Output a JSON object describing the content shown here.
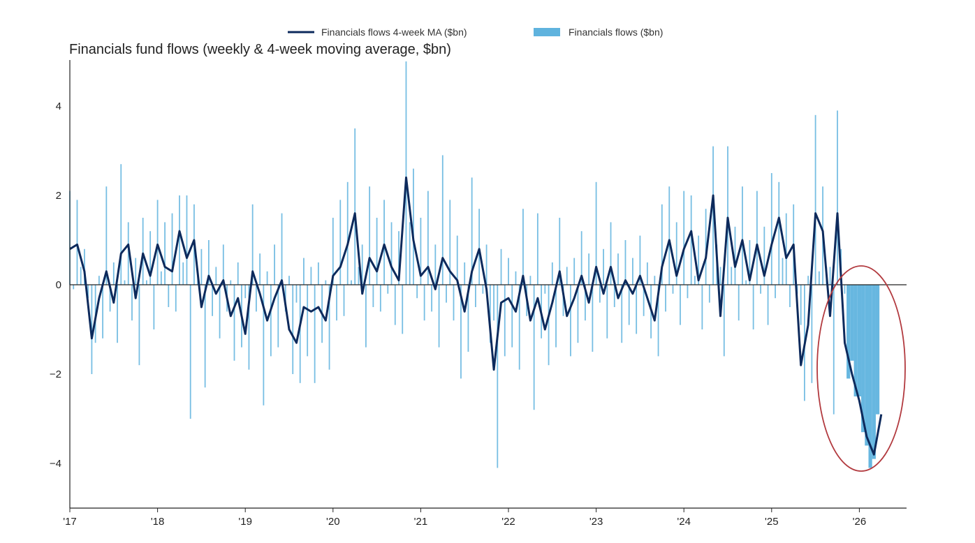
{
  "chart_data": {
    "type": "bar+line",
    "title": "Financials fund flows (weekly & 4-week moving average, $bn)",
    "xlabel": "",
    "ylabel": "",
    "xlim": [
      2017,
      2026.5
    ],
    "ylim": [
      -5,
      5
    ],
    "x_ticks": [
      2017,
      2018,
      2019,
      2020,
      2021,
      2022,
      2023,
      2024,
      2025,
      2026
    ],
    "x_tick_labels": [
      "'17",
      "'18",
      "'19",
      "'20",
      "'21",
      "'22",
      "'23",
      "'24",
      "'25",
      "'26"
    ],
    "y_ticks": [
      -4,
      -2,
      0,
      2,
      4
    ],
    "y_tick_labels": [
      "−4",
      "−2",
      "0",
      "2",
      "4"
    ],
    "legend": {
      "placement": "top-center",
      "entries": [
        "Financials flows 4-week MA ($bn)",
        "Financials flows ($bn)"
      ]
    },
    "colors": {
      "ma": "#0d2a5c",
      "flows": "#5fb3de",
      "annotation": "#b23a3f",
      "axis": "#222222"
    },
    "annotation": {
      "type": "ellipse",
      "x_range": [
        2025.55,
        2026.5
      ],
      "y_range": [
        -4.5,
        0.4
      ],
      "label": ""
    },
    "series": [
      {
        "name": "Financials flows ($bn)",
        "type": "bar",
        "x_start": 2017.0,
        "x_step_years": 0.041667,
        "values": [
          2.1,
          -0.1,
          1.9,
          0.4,
          0.8,
          -0.3,
          -2.0,
          -1.3,
          0.2,
          -1.2,
          2.2,
          -0.6,
          0.5,
          -1.3,
          2.7,
          0.1,
          1.4,
          -0.8,
          0.6,
          -1.8,
          1.5,
          0.1,
          1.2,
          -1.0,
          1.9,
          0.3,
          1.4,
          -0.5,
          1.6,
          -0.6,
          2.0,
          0.5,
          2.0,
          -3.0,
          1.8,
          0.2,
          0.8,
          -2.3,
          1.0,
          -0.7,
          0.4,
          -1.2,
          0.9,
          -0.6,
          0.1,
          -1.7,
          0.5,
          -1.4,
          -0.3,
          -1.9,
          1.8,
          -0.6,
          0.7,
          -2.7,
          0.3,
          -1.6,
          0.9,
          -1.4,
          1.6,
          -0.6,
          0.2,
          -2.0,
          -0.4,
          -2.2,
          0.6,
          -1.6,
          0.4,
          -2.2,
          0.5,
          -1.3,
          0.1,
          -1.9,
          1.5,
          -0.8,
          1.9,
          -0.7,
          2.3,
          0.1,
          3.5,
          0.4,
          0.9,
          -1.4,
          2.2,
          -0.5,
          1.5,
          -0.6,
          1.9,
          -0.2,
          1.4,
          -0.9,
          1.2,
          -1.1,
          5.0,
          1.4,
          2.6,
          -0.3,
          1.5,
          -0.8,
          2.1,
          -0.6,
          0.9,
          -1.4,
          2.9,
          -0.4,
          1.9,
          -0.8,
          1.1,
          -2.1,
          0.5,
          -1.5,
          2.4,
          -0.5,
          1.7,
          -0.2,
          0.9,
          -1.3,
          -0.8,
          -4.1,
          0.8,
          -1.6,
          0.6,
          -1.4,
          0.3,
          -1.9,
          1.7,
          -0.7,
          0.2,
          -2.8,
          1.6,
          -1.2,
          -0.2,
          -1.8,
          0.5,
          -1.4,
          1.5,
          -0.7,
          0.4,
          -1.6,
          0.6,
          -1.3,
          1.2,
          -0.8,
          0.7,
          -1.5,
          2.3,
          -0.4,
          0.8,
          -1.2,
          1.4,
          -0.5,
          0.7,
          -1.3,
          1.0,
          -0.9,
          0.6,
          -1.1,
          1.1,
          -0.7,
          0.5,
          -1.2,
          0.2,
          -1.6,
          1.8,
          -0.6,
          2.2,
          -0.2,
          1.4,
          -0.9,
          2.1,
          -0.3,
          2.0,
          0.2,
          1.1,
          -1.0,
          1.7,
          -0.4,
          3.1,
          0.9,
          0.4,
          -1.6,
          3.1,
          0.4,
          1.3,
          -0.8,
          2.2,
          0.1,
          1.0,
          -1.0,
          2.1,
          -0.2,
          1.3,
          -0.9,
          2.5,
          -0.3,
          2.3,
          0.6,
          1.6,
          -0.5,
          1.8,
          -0.2,
          -0.9,
          -2.6,
          0.2,
          -2.2,
          3.8,
          0.3,
          2.2,
          0.4,
          0.4,
          -2.9,
          3.9,
          0.8,
          -0.2,
          -2.1,
          -1.7,
          -2.5,
          -2.5,
          -3.3,
          -3.6,
          -4.1,
          -3.9,
          -2.9
        ]
      },
      {
        "name": "Financials flows 4-week MA ($bn)",
        "type": "line",
        "x_start": 2017.0,
        "x_step_years": 0.083333,
        "values": [
          0.8,
          0.9,
          0.3,
          -1.2,
          -0.3,
          0.3,
          -0.4,
          0.7,
          0.9,
          -0.3,
          0.7,
          0.2,
          0.9,
          0.4,
          0.3,
          1.2,
          0.6,
          1.0,
          -0.5,
          0.2,
          -0.2,
          0.1,
          -0.7,
          -0.3,
          -1.1,
          0.3,
          -0.2,
          -0.8,
          -0.3,
          0.1,
          -1.0,
          -1.3,
          -0.5,
          -0.6,
          -0.5,
          -0.8,
          0.2,
          0.4,
          0.9,
          1.6,
          -0.2,
          0.6,
          0.3,
          0.9,
          0.4,
          0.1,
          2.4,
          1.0,
          0.2,
          0.4,
          -0.1,
          0.6,
          0.3,
          0.1,
          -0.6,
          0.3,
          0.8,
          -0.1,
          -1.9,
          -0.4,
          -0.3,
          -0.6,
          0.2,
          -0.8,
          -0.3,
          -1.0,
          -0.4,
          0.3,
          -0.7,
          -0.3,
          0.2,
          -0.4,
          0.4,
          -0.2,
          0.4,
          -0.3,
          0.1,
          -0.2,
          0.2,
          -0.3,
          -0.8,
          0.4,
          1.0,
          0.2,
          0.8,
          1.2,
          0.1,
          0.6,
          2.0,
          -0.7,
          1.5,
          0.4,
          1.0,
          0.1,
          0.9,
          0.2,
          0.9,
          1.5,
          0.6,
          0.9,
          -1.8,
          -0.9,
          1.6,
          1.2,
          -0.7,
          1.6,
          -1.3,
          -2.0,
          -2.6,
          -3.4,
          -3.8,
          -2.9
        ]
      }
    ]
  }
}
